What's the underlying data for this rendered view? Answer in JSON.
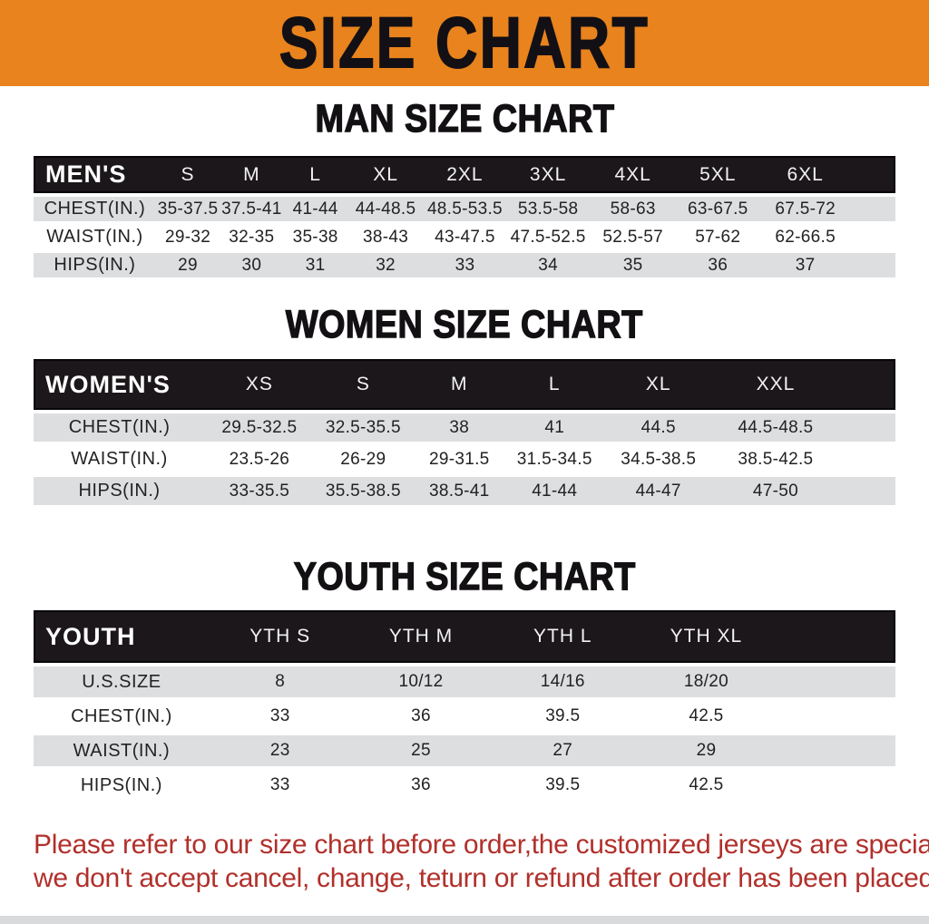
{
  "banner": {
    "title": "SIZE CHART"
  },
  "charts": [
    {
      "id": "mens",
      "title": "MAN SIZE CHART",
      "header_label": "MEN'S",
      "columns": [
        "S",
        "M",
        "L",
        "XL",
        "2XL",
        "3XL",
        "4XL",
        "5XL",
        "6XL"
      ],
      "rows": [
        {
          "label": "CHEST(IN.)",
          "values": [
            "35-37.5",
            "37.5-41",
            "41-44",
            "44-48.5",
            "48.5-53.5",
            "53.5-58",
            "58-63",
            "63-67.5",
            "67.5-72"
          ]
        },
        {
          "label": "WAIST(IN.)",
          "values": [
            "29-32",
            "32-35",
            "35-38",
            "38-43",
            "43-47.5",
            "47.5-52.5",
            "52.5-57",
            "57-62",
            "62-66.5"
          ]
        },
        {
          "label": "HIPS(IN.)",
          "values": [
            "29",
            "30",
            "31",
            "32",
            "33",
            "34",
            "35",
            "36",
            "37"
          ]
        }
      ]
    },
    {
      "id": "womens",
      "title": "WOMEN SIZE CHART",
      "header_label": "WOMEN'S",
      "columns": [
        "XS",
        "S",
        "M",
        "L",
        "XL",
        "XXL"
      ],
      "rows": [
        {
          "label": "CHEST(IN.)",
          "values": [
            "29.5-32.5",
            "32.5-35.5",
            "38",
            "41",
            "44.5",
            "44.5-48.5"
          ]
        },
        {
          "label": "WAIST(IN.)",
          "values": [
            "23.5-26",
            "26-29",
            "29-31.5",
            "31.5-34.5",
            "34.5-38.5",
            "38.5-42.5"
          ]
        },
        {
          "label": "HIPS(IN.)",
          "values": [
            "33-35.5",
            "35.5-38.5",
            "38.5-41",
            "41-44",
            "44-47",
            "47-50"
          ]
        }
      ]
    },
    {
      "id": "youth",
      "title": "YOUTH SIZE CHART",
      "header_label": "YOUTH",
      "columns": [
        "YTH S",
        "YTH M",
        "YTH L",
        "YTH XL"
      ],
      "rows": [
        {
          "label": "U.S.SIZE",
          "values": [
            "8",
            "10/12",
            "14/16",
            "18/20"
          ]
        },
        {
          "label": "CHEST(IN.)",
          "values": [
            "33",
            "36",
            "39.5",
            "42.5"
          ]
        },
        {
          "label": "WAIST(IN.)",
          "values": [
            "23",
            "25",
            "27",
            "29"
          ]
        },
        {
          "label": "HIPS(IN.)",
          "values": [
            "33",
            "36",
            "39.5",
            "42.5"
          ]
        }
      ]
    }
  ],
  "footer": {
    "line1": "Please refer to our size chart before order,the customized jerseys are special products,",
    "line2": "we don't accept cancel, change, teturn or refund after order has been placed!"
  },
  "colors": {
    "banner_bg": "#E8831D",
    "table_header_bg": "#1B171A",
    "stripe_row_bg": "#DDDEDF",
    "footer_text": "#B1302B"
  }
}
